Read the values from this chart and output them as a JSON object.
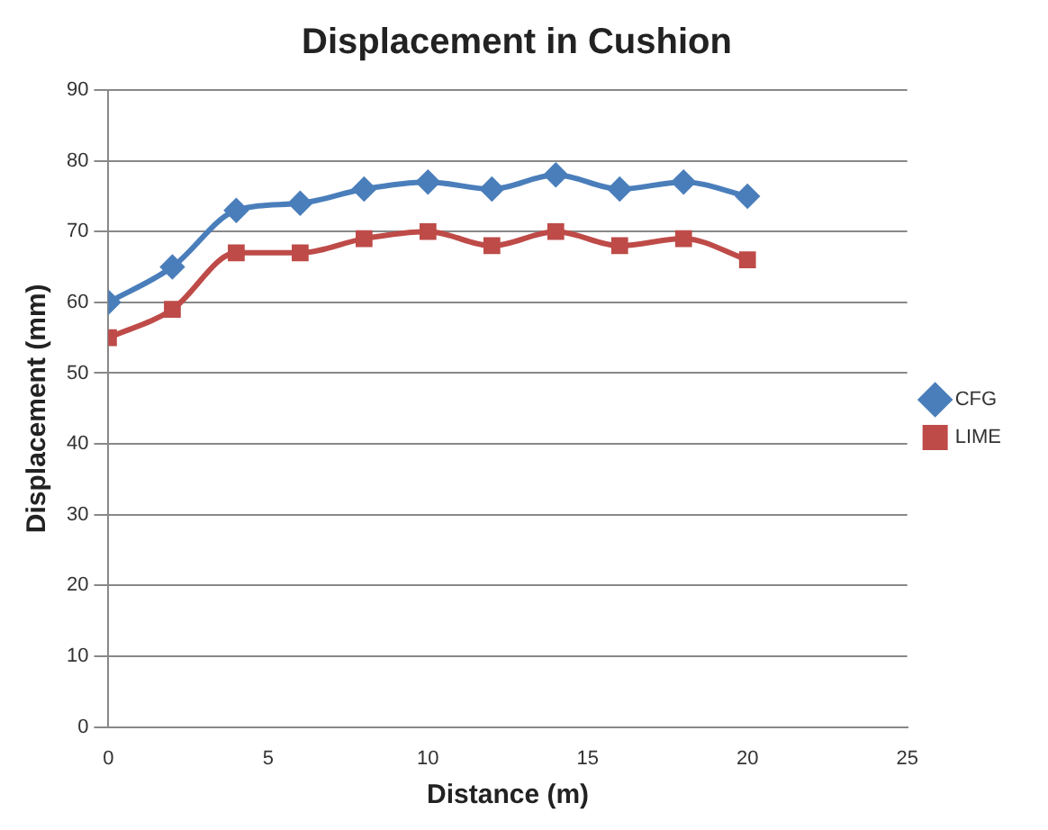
{
  "chart_data": {
    "type": "line",
    "title": "Displacement in Cushion",
    "xlabel": "Distance (m)",
    "ylabel": "Displacement (mm)",
    "x": [
      0,
      2,
      4,
      6,
      8,
      10,
      12,
      14,
      16,
      18,
      20
    ],
    "series": [
      {
        "name": "CFG",
        "color": "#4a7ebb",
        "marker": "diamond",
        "values": [
          60,
          65,
          73,
          74,
          76,
          77,
          76,
          78,
          76,
          77,
          75
        ]
      },
      {
        "name": "LIME",
        "color": "#be4b48",
        "marker": "square",
        "values": [
          55,
          59,
          67,
          67,
          69,
          70,
          68,
          70,
          68,
          69,
          66
        ]
      }
    ],
    "xlim": [
      0,
      25
    ],
    "xticks": [
      0,
      5,
      10,
      15,
      20,
      25
    ],
    "ylim": [
      0,
      90
    ],
    "yticks": [
      0,
      10,
      20,
      30,
      40,
      50,
      60,
      70,
      80,
      90
    ],
    "grid": "y",
    "legend": "right"
  }
}
